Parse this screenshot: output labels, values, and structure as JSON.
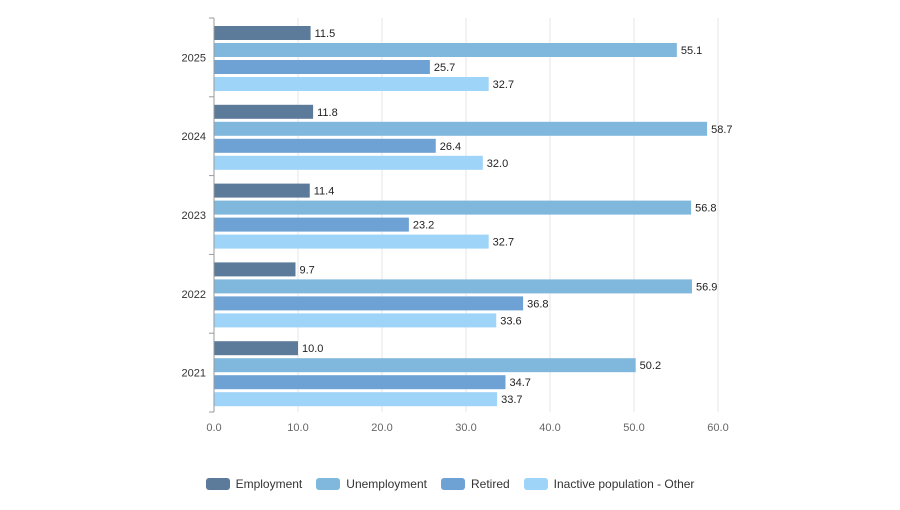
{
  "chart_data": {
    "type": "bar",
    "orientation": "horizontal",
    "title": "",
    "xlabel": "",
    "ylabel": "",
    "categories": [
      "2025",
      "2024",
      "2023",
      "2022",
      "2021"
    ],
    "series": [
      {
        "name": "Employment",
        "color": "#5c7a99",
        "values": [
          11.5,
          11.8,
          11.4,
          9.7,
          10.0
        ]
      },
      {
        "name": "Unemployment",
        "color": "#7fb8dc",
        "values": [
          55.1,
          58.7,
          56.8,
          56.9,
          50.2
        ]
      },
      {
        "name": "Retired",
        "color": "#6ea2d4",
        "values": [
          25.7,
          26.4,
          23.2,
          36.8,
          34.7
        ]
      },
      {
        "name": "Inactive population - Other",
        "color": "#9dd4f8",
        "values": [
          32.7,
          32.0,
          32.7,
          33.6,
          33.7
        ]
      }
    ],
    "xlim": [
      0,
      60
    ],
    "xticks": [
      "0.0",
      "10.0",
      "20.0",
      "30.0",
      "40.0",
      "50.0",
      "60.0"
    ],
    "grid": true,
    "legend_position": "bottom"
  }
}
